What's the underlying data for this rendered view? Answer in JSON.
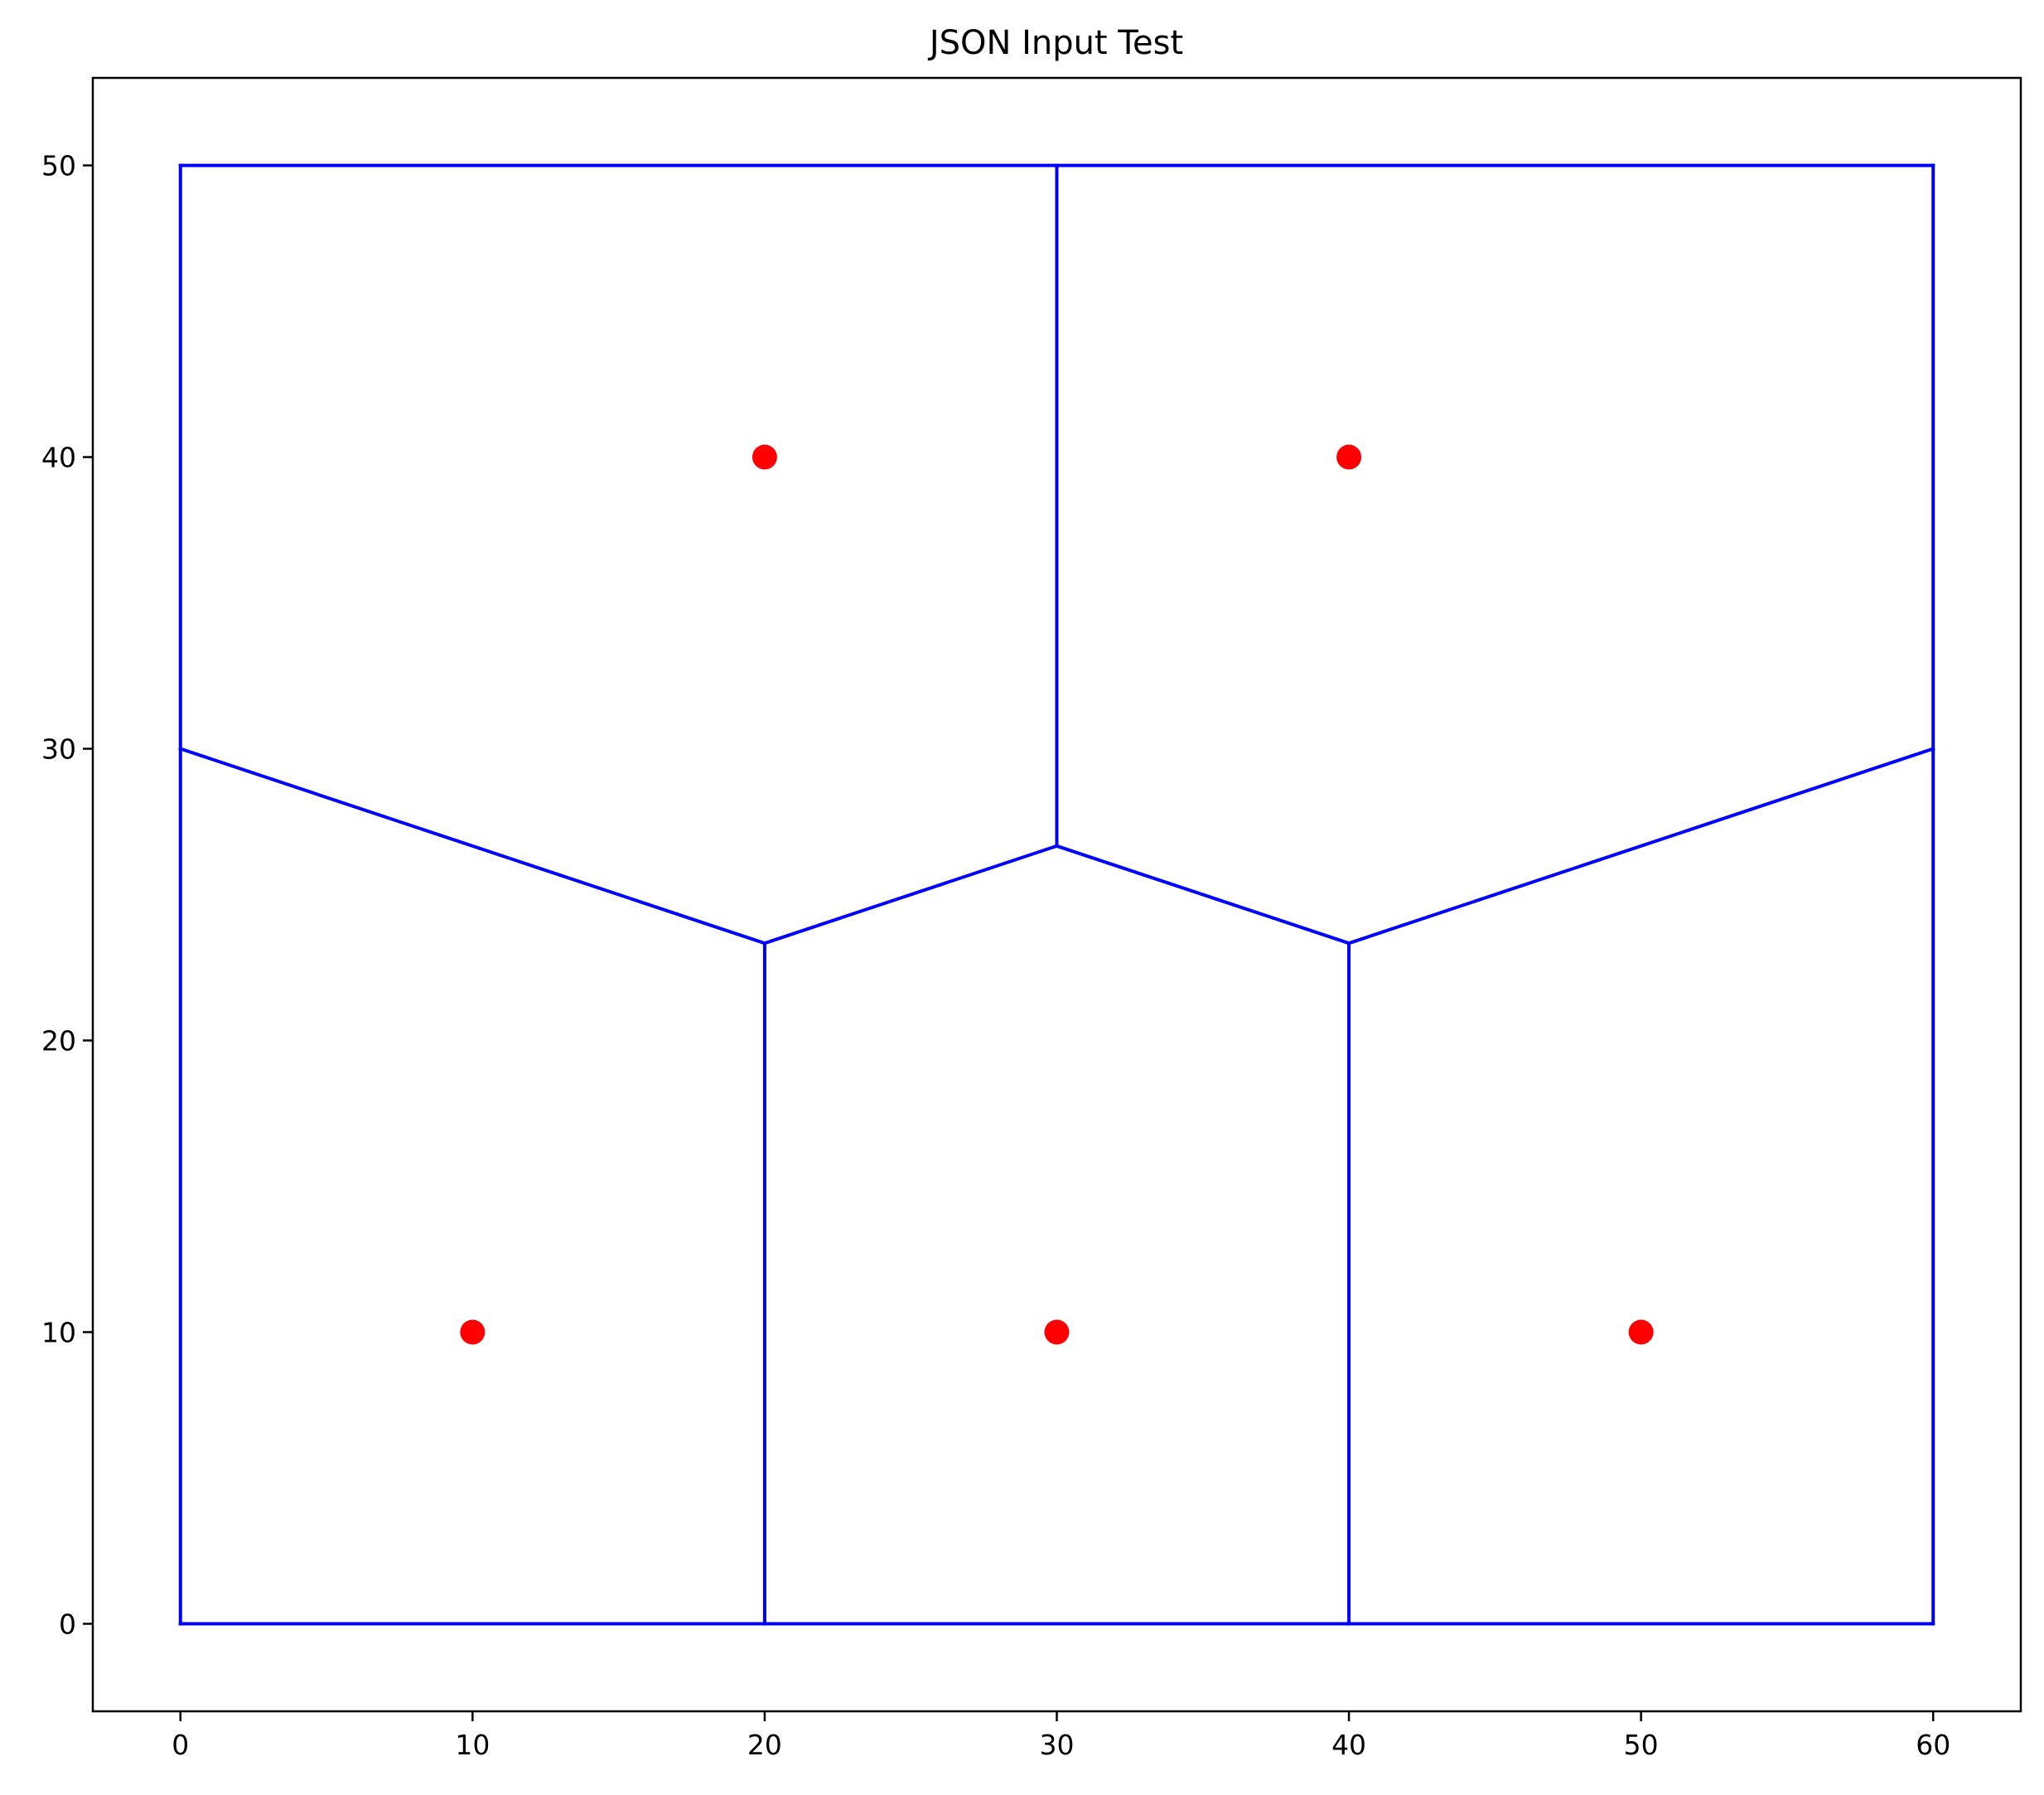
{
  "chart_data": {
    "type": "voronoi",
    "title": "JSON Input Test",
    "xlabel": "",
    "ylabel": "",
    "xlim": [
      -3,
      63
    ],
    "ylim": [
      -3,
      53
    ],
    "xticks": [
      0,
      10,
      20,
      30,
      40,
      50,
      60
    ],
    "yticks": [
      0,
      10,
      20,
      30,
      40,
      50
    ],
    "grid": false,
    "points": [
      {
        "x": 10,
        "y": 10
      },
      {
        "x": 30,
        "y": 10
      },
      {
        "x": 50,
        "y": 10
      },
      {
        "x": 20,
        "y": 40
      },
      {
        "x": 40,
        "y": 40
      }
    ],
    "point_color": "#ff0000",
    "edge_color": "#0000ff",
    "edges": [
      [
        [
          0,
          0
        ],
        [
          60,
          0
        ]
      ],
      [
        [
          60,
          0
        ],
        [
          60,
          50
        ]
      ],
      [
        [
          60,
          50
        ],
        [
          0,
          50
        ]
      ],
      [
        [
          0,
          50
        ],
        [
          0,
          0
        ]
      ],
      [
        [
          20,
          0
        ],
        [
          20,
          23.333
        ]
      ],
      [
        [
          40,
          0
        ],
        [
          40,
          23.333
        ]
      ],
      [
        [
          0,
          30
        ],
        [
          20,
          23.333
        ]
      ],
      [
        [
          20,
          23.333
        ],
        [
          30,
          26.667
        ]
      ],
      [
        [
          30,
          26.667
        ],
        [
          40,
          23.333
        ]
      ],
      [
        [
          40,
          23.333
        ],
        [
          60,
          30
        ]
      ],
      [
        [
          30,
          26.667
        ],
        [
          30,
          50
        ]
      ]
    ]
  }
}
